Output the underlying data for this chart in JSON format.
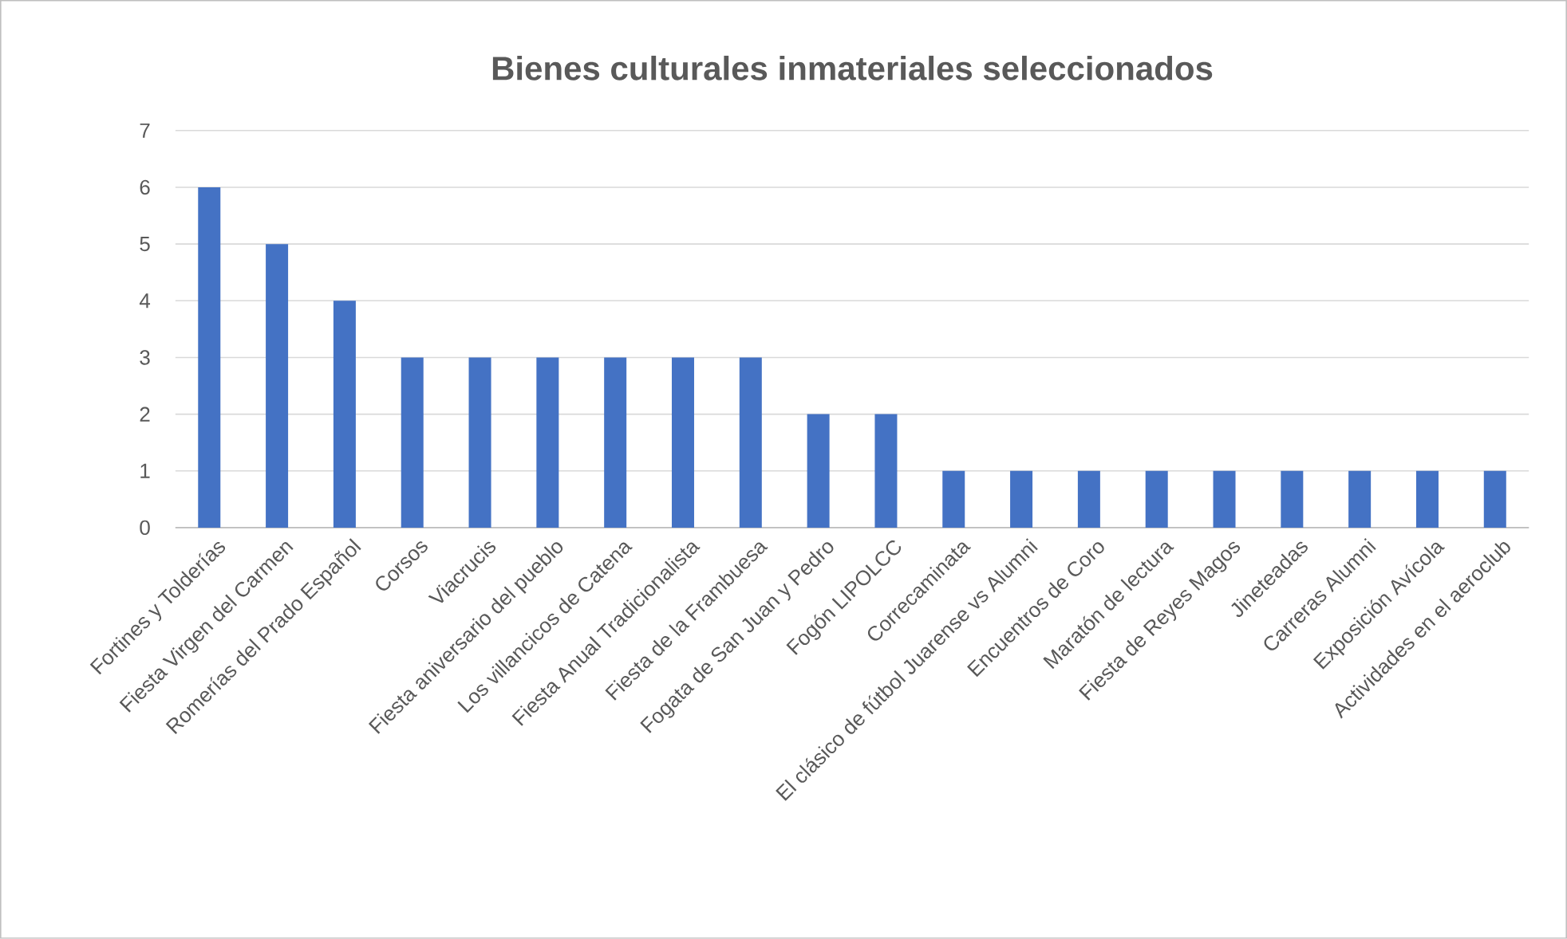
{
  "chart_data": {
    "type": "bar",
    "title": "Bienes culturales inmateriales seleccionados",
    "categories": [
      "Fortines y Tolderías",
      "Fiesta Virgen del Carmen",
      "Romerías del Prado Español",
      "Corsos",
      "Viacrucis",
      "Fiesta aniversario del pueblo",
      "Los villancicos de Catena",
      "Fiesta Anual Tradicionalista",
      "Fiesta de la Frambuesa",
      "Fogata de San Juan y Pedro",
      "Fogón LIPOLCC",
      "Correcaminata",
      "El clásico de fútbol Juarense vs Alumni",
      "Encuentros de Coro",
      "Maratón de lectura",
      "Fiesta de Reyes Magos",
      "Jineteadas",
      "Carreras Alumni",
      "Exposición Avícola",
      "Actividades en el aeroclub"
    ],
    "values": [
      6,
      5,
      4,
      3,
      3,
      3,
      3,
      3,
      3,
      2,
      2,
      1,
      1,
      1,
      1,
      1,
      1,
      1,
      1,
      1
    ],
    "color": "#4472c4",
    "ylim": [
      0,
      7
    ],
    "yticks": [
      0,
      1,
      2,
      3,
      4,
      5,
      6,
      7
    ],
    "grid": "y"
  }
}
